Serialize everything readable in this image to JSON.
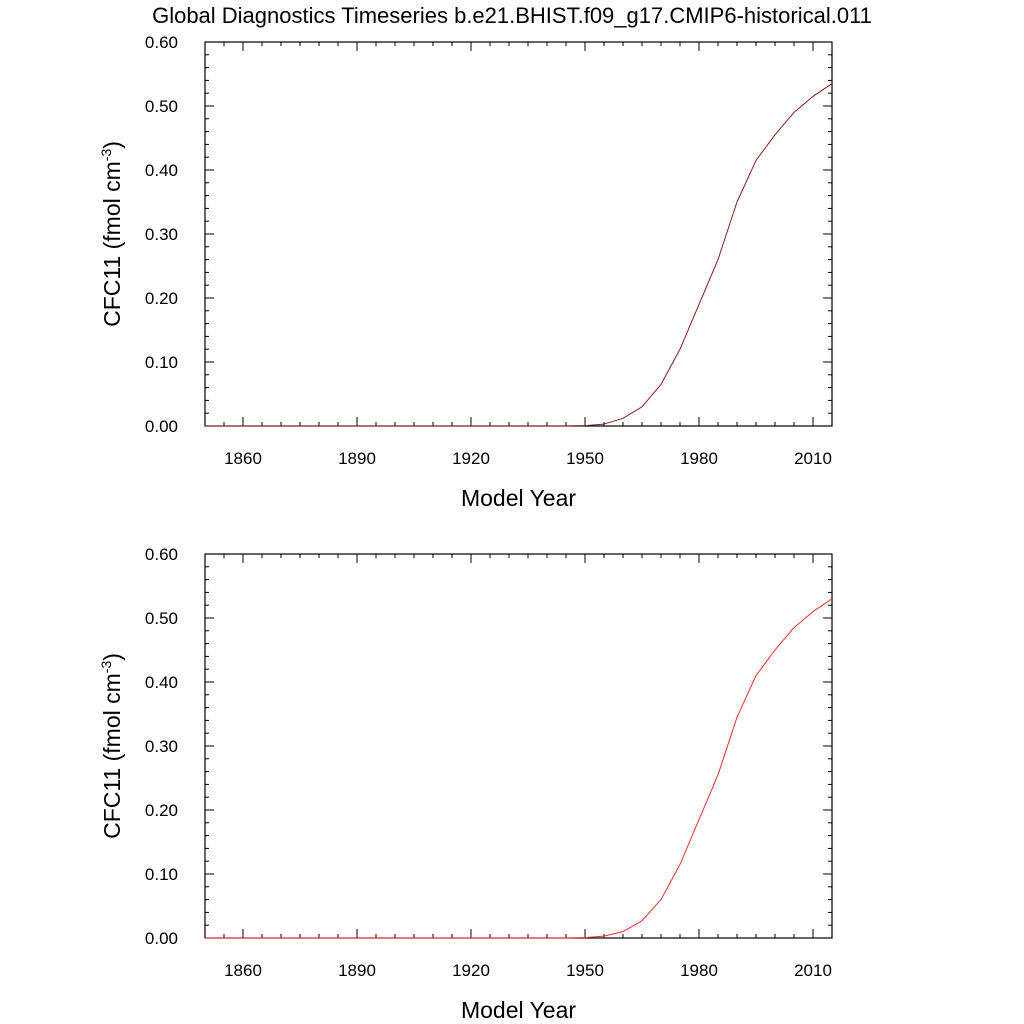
{
  "title": "Global Diagnostics Timeseries b.e21.BHIST.f09_g17.CMIP6-historical.011",
  "chart_data": [
    {
      "type": "line",
      "xlabel": "Model Year",
      "ylabel_main": "CFC11 (fmol cm",
      "ylabel_sup": "-3",
      "ylabel_close": ")",
      "xlim": [
        1850,
        2015
      ],
      "ylim": [
        0.0,
        0.6
      ],
      "xticks": [
        1860,
        1890,
        1920,
        1950,
        1980,
        2010
      ],
      "yticks": [
        "0.00",
        "0.10",
        "0.20",
        "0.30",
        "0.40",
        "0.50",
        "0.60"
      ],
      "line_color": "#8b1a1a",
      "series": [
        {
          "x": [
            1850,
            1900,
            1945,
            1950,
            1955,
            1960,
            1965,
            1970,
            1975,
            1980,
            1985,
            1990,
            1995,
            2000,
            2005,
            2010,
            2015
          ],
          "y": [
            0.0,
            0.0,
            0.0,
            0.0005,
            0.003,
            0.012,
            0.03,
            0.065,
            0.12,
            0.19,
            0.26,
            0.35,
            0.415,
            0.455,
            0.49,
            0.515,
            0.535
          ]
        }
      ]
    },
    {
      "type": "line",
      "xlabel": "Model Year",
      "ylabel_main": "CFC11 (fmol cm",
      "ylabel_sup": "-3",
      "ylabel_close": ")",
      "xlim": [
        1850,
        2015
      ],
      "ylim": [
        0.0,
        0.6
      ],
      "xticks": [
        1860,
        1890,
        1920,
        1950,
        1980,
        2010
      ],
      "yticks": [
        "0.00",
        "0.10",
        "0.20",
        "0.30",
        "0.40",
        "0.50",
        "0.60"
      ],
      "line_color": "#ff2a2a",
      "series": [
        {
          "x": [
            1850,
            1900,
            1945,
            1950,
            1955,
            1960,
            1965,
            1970,
            1975,
            1980,
            1985,
            1990,
            1995,
            2000,
            2005,
            2010,
            2015
          ],
          "y": [
            0.0,
            0.0,
            0.0,
            0.0005,
            0.003,
            0.01,
            0.027,
            0.06,
            0.115,
            0.185,
            0.255,
            0.345,
            0.41,
            0.45,
            0.485,
            0.51,
            0.53
          ]
        }
      ]
    }
  ]
}
